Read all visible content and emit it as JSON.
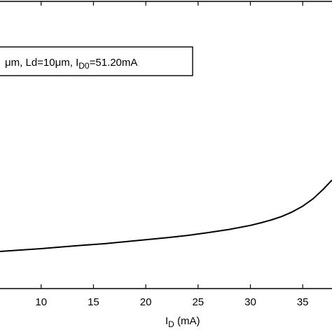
{
  "chart_data": {
    "type": "line",
    "title": "",
    "xlabel_main": "I",
    "xlabel_sub": "D",
    "xlabel_unit": " (mA)",
    "ylabel": "",
    "xlim": [
      6,
      37.8
    ],
    "ylim": [
      0,
      1
    ],
    "x_ticks": [
      10,
      15,
      20,
      25,
      30,
      35
    ],
    "x_tick_labels": [
      "10",
      "15",
      "20",
      "25",
      "30",
      "35"
    ],
    "grid": false,
    "legend": {
      "placement": "top-left",
      "segments": [
        {
          "text": "μm, Ld=10μm, I",
          "sub": false
        },
        {
          "text": "D0",
          "sub": true
        },
        {
          "text": "=51.20mA",
          "sub": false
        }
      ]
    },
    "series": [
      {
        "color": "#000000",
        "x": [
          6,
          8,
          10,
          12,
          14,
          16,
          18,
          20,
          22,
          24,
          26,
          28,
          30,
          31,
          32,
          33,
          34,
          35,
          36,
          37,
          37.8
        ],
        "y": [
          0.129,
          0.134,
          0.139,
          0.145,
          0.151,
          0.156,
          0.163,
          0.17,
          0.177,
          0.185,
          0.195,
          0.206,
          0.22,
          0.229,
          0.239,
          0.251,
          0.267,
          0.287,
          0.313,
          0.347,
          0.378
        ]
      }
    ]
  }
}
